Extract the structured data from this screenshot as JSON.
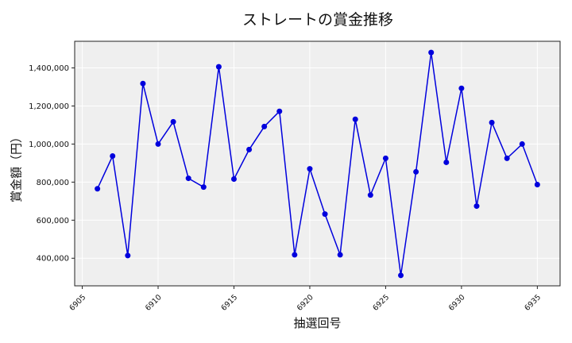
{
  "chart_data": {
    "type": "line",
    "title": "ストレートの賞金推移",
    "xlabel": "抽選回号",
    "ylabel": "賞金額（円）",
    "x": [
      6906,
      6907,
      6908,
      6909,
      6910,
      6911,
      6912,
      6913,
      6914,
      6915,
      6916,
      6917,
      6918,
      6919,
      6920,
      6921,
      6922,
      6923,
      6924,
      6925,
      6926,
      6927,
      6928,
      6929,
      6930,
      6931,
      6932,
      6933,
      6934,
      6935
    ],
    "series": [
      {
        "name": "ストレート",
        "color": "#0000dd",
        "values": [
          765000,
          937000,
          414000,
          1318000,
          1000000,
          1117000,
          820000,
          774000,
          1406000,
          816000,
          971000,
          1092000,
          1172000,
          418000,
          870000,
          632000,
          418000,
          1130000,
          732000,
          925000,
          310000,
          854000,
          1481000,
          904000,
          1293000,
          674000,
          1113000,
          925000,
          1000000,
          787000
        ]
      }
    ],
    "xticks": [
      6905,
      6910,
      6915,
      6920,
      6925,
      6930,
      6935
    ],
    "xtick_labels": [
      "6905",
      "6910",
      "6915",
      "6920",
      "6925",
      "6930",
      "6935"
    ],
    "yticks": [
      400000,
      600000,
      800000,
      1000000,
      1200000,
      1400000
    ],
    "ytick_labels": [
      "400,000",
      "600,000",
      "800,000",
      "1,000,000",
      "1,200,000",
      "1,400,000"
    ],
    "xlim": [
      6904.5,
      6936.5
    ],
    "ylim": [
      255000,
      1540000
    ],
    "grid": true,
    "background": "#efefef",
    "legend": null
  }
}
